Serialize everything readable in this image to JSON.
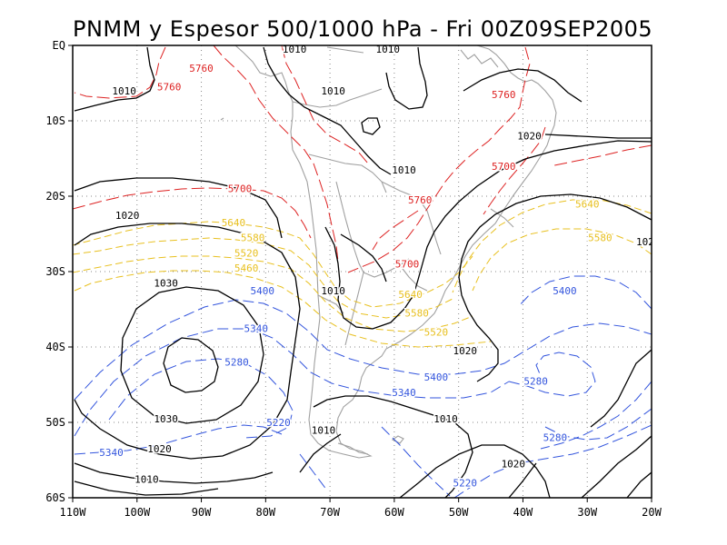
{
  "title": "PNMM y Espesor 500/1000 hPa - Fri 00Z09SEP2005",
  "axes": {
    "lon_labels": [
      "110W",
      "100W",
      "90W",
      "80W",
      "70W",
      "60W",
      "50W",
      "40W",
      "30W",
      "20W"
    ],
    "lat_labels": [
      "EQ",
      "10S",
      "20S",
      "30S",
      "40S",
      "50S",
      "60S"
    ],
    "lon_range": [
      -110,
      -20
    ],
    "lat_range": [
      -60,
      0
    ],
    "grid": "dotted"
  },
  "colors": {
    "pressure": "#000000",
    "coast": "#a0a0a0",
    "thick_warm": "#dd2222",
    "thick_mid": "#e8c020",
    "thick_cold": "#3355dd"
  },
  "contour_labels": [
    {
      "text": "1010",
      "lon": -75.5,
      "lat": -0.5,
      "kind": "pressure"
    },
    {
      "text": "1010",
      "lon": -61,
      "lat": -0.5,
      "kind": "pressure"
    },
    {
      "text": "1010",
      "lon": -102,
      "lat": -6
    },
    {
      "text": "1010",
      "lon": -69.5,
      "lat": -6
    },
    {
      "text": "1020",
      "lon": -39,
      "lat": -12
    },
    {
      "text": "1010",
      "lon": -58.5,
      "lat": -16.5
    },
    {
      "text": "1020",
      "lon": -101.5,
      "lat": -22.5
    },
    {
      "text": "102",
      "lon": -21,
      "lat": -26
    },
    {
      "text": "1030",
      "lon": -95.5,
      "lat": -31.5
    },
    {
      "text": "1010",
      "lon": -69.5,
      "lat": -32.5
    },
    {
      "text": "1020",
      "lon": -49,
      "lat": -40.5
    },
    {
      "text": "1010",
      "lon": -52,
      "lat": -49.5
    },
    {
      "text": "1030",
      "lon": -95.5,
      "lat": -49.5
    },
    {
      "text": "1010",
      "lon": -71,
      "lat": -51
    },
    {
      "text": "1020",
      "lon": -96.5,
      "lat": -53.5
    },
    {
      "text": "1020",
      "lon": -41.5,
      "lat": -55.5
    },
    {
      "text": "1010",
      "lon": -98.5,
      "lat": -57.5
    },
    {
      "text": "5760",
      "lon": -90,
      "lat": -3
    },
    {
      "text": "5760",
      "lon": -95,
      "lat": -5.5
    },
    {
      "text": "5760",
      "lon": -43,
      "lat": -6.5
    },
    {
      "text": "5700",
      "lon": -43,
      "lat": -16
    },
    {
      "text": "5700",
      "lon": -84,
      "lat": -19
    },
    {
      "text": "5760",
      "lon": -56,
      "lat": -20.5
    },
    {
      "text": "5640",
      "lon": -85,
      "lat": -23.5
    },
    {
      "text": "5640",
      "lon": -30,
      "lat": -21
    },
    {
      "text": "5580",
      "lon": -82,
      "lat": -25.5
    },
    {
      "text": "5580",
      "lon": -28,
      "lat": -25.5
    },
    {
      "text": "5520",
      "lon": -83,
      "lat": -27.5
    },
    {
      "text": "5460",
      "lon": -83,
      "lat": -29.5
    },
    {
      "text": "5700",
      "lon": -58,
      "lat": -29
    },
    {
      "text": "5640",
      "lon": -57.5,
      "lat": -33
    },
    {
      "text": "5580",
      "lon": -56.5,
      "lat": -35.5
    },
    {
      "text": "5520",
      "lon": -53.5,
      "lat": -38
    },
    {
      "text": "5400",
      "lon": -80.5,
      "lat": -32.5
    },
    {
      "text": "5340",
      "lon": -81.5,
      "lat": -37.5
    },
    {
      "text": "5280",
      "lon": -84.5,
      "lat": -42
    },
    {
      "text": "5400",
      "lon": -33.5,
      "lat": -32.5
    },
    {
      "text": "5400",
      "lon": -53.5,
      "lat": -44
    },
    {
      "text": "5340",
      "lon": -58.5,
      "lat": -46
    },
    {
      "text": "5280",
      "lon": -38,
      "lat": -44.5
    },
    {
      "text": "5220",
      "lon": -78,
      "lat": -50
    },
    {
      "text": "5280",
      "lon": -35,
      "lat": -52
    },
    {
      "text": "5340",
      "lon": -104,
      "lat": -54
    },
    {
      "text": "5220",
      "lon": -49,
      "lat": -58
    }
  ]
}
